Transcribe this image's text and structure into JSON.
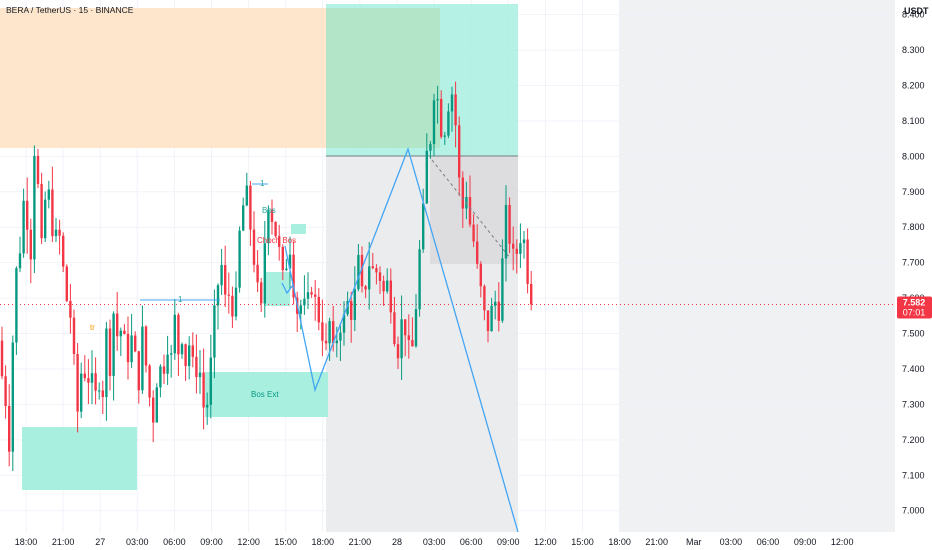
{
  "header": {
    "title": "BERA / TetherUS · 15 · BINANCE"
  },
  "price_axis": {
    "currency": "USDT",
    "last_price": "7.582",
    "countdown": "07:01",
    "last_value": 7.582
  },
  "colors": {
    "up": "#089981",
    "down": "#f23645",
    "supply_zone": "#fde6cc",
    "teal_zone": "#a8efe0",
    "green_zone": "#b3e6c9",
    "gray_zone": "#e9eaec",
    "future_area": "#f0f1f3",
    "pattern_line": "#42a5f5",
    "label_red": "#f23645",
    "label_orange": "#ff9800",
    "label_teal": "#26a69a"
  },
  "annotations": {
    "bos_ext": "Bos Ext",
    "choch_bos": "Choch Bos",
    "label_1a": "1",
    "label_1b": "1",
    "label_tr": "tr",
    "label_bos": "Bos"
  },
  "chart_data": {
    "type": "candlestick",
    "title": "BERA / TetherUS · 15 · BINANCE",
    "ylabel": "USDT",
    "ylim": [
      6.94,
      8.43
    ],
    "y_ticks": [
      7.0,
      7.1,
      7.2,
      7.3,
      7.4,
      7.5,
      7.6,
      7.7,
      7.8,
      7.9,
      8.0,
      8.1,
      8.2,
      8.3,
      8.4
    ],
    "x_ticks": [
      "18:00",
      "21:00",
      "27",
      "03:00",
      "06:00",
      "09:00",
      "12:00",
      "15:00",
      "18:00",
      "21:00",
      "28",
      "03:00",
      "06:00",
      "09:00",
      "12:00",
      "15:00",
      "18:00",
      "21:00",
      "Mar",
      "03:00",
      "06:00",
      "09:00",
      "12:00"
    ],
    "grid": true,
    "anchors": [
      [
        0,
        7.48
      ],
      [
        4,
        7.4
      ],
      [
        8,
        7.35
      ],
      [
        12,
        7.22
      ],
      [
        14,
        7.15
      ],
      [
        18,
        7.7
      ],
      [
        22,
        7.65
      ],
      [
        26,
        7.88
      ],
      [
        30,
        7.85
      ],
      [
        34,
        7.7
      ],
      [
        38,
        8.02
      ],
      [
        42,
        7.9
      ],
      [
        46,
        7.7
      ],
      [
        50,
        7.95
      ],
      [
        54,
        7.85
      ],
      [
        58,
        7.75
      ],
      [
        62,
        7.8
      ],
      [
        66,
        7.7
      ],
      [
        70,
        7.6
      ],
      [
        74,
        7.55
      ],
      [
        78,
        7.4
      ],
      [
        82,
        7.25
      ],
      [
        86,
        7.45
      ],
      [
        90,
        7.35
      ],
      [
        94,
        7.4
      ],
      [
        98,
        7.3
      ],
      [
        102,
        7.38
      ],
      [
        106,
        7.32
      ],
      [
        110,
        7.5
      ],
      [
        114,
        7.4
      ],
      [
        118,
        7.6
      ],
      [
        122,
        7.45
      ],
      [
        126,
        7.55
      ],
      [
        130,
        7.4
      ],
      [
        134,
        7.5
      ],
      [
        138,
        7.45
      ],
      [
        142,
        7.35
      ],
      [
        146,
        7.5
      ],
      [
        150,
        7.4
      ],
      [
        154,
        7.3
      ],
      [
        158,
        7.25
      ],
      [
        162,
        7.45
      ],
      [
        166,
        7.35
      ],
      [
        170,
        7.5
      ],
      [
        174,
        7.4
      ],
      [
        178,
        7.55
      ],
      [
        182,
        7.45
      ],
      [
        186,
        7.5
      ],
      [
        190,
        7.4
      ],
      [
        194,
        7.5
      ],
      [
        198,
        7.35
      ],
      [
        202,
        7.45
      ],
      [
        206,
        7.3
      ],
      [
        210,
        7.28
      ],
      [
        214,
        7.4
      ],
      [
        218,
        7.55
      ],
      [
        222,
        7.65
      ],
      [
        226,
        7.7
      ],
      [
        230,
        7.55
      ],
      [
        234,
        7.65
      ],
      [
        238,
        7.5
      ],
      [
        242,
        7.75
      ],
      [
        246,
        7.85
      ],
      [
        250,
        7.9
      ],
      [
        254,
        7.8
      ],
      [
        258,
        7.7
      ],
      [
        262,
        7.6
      ],
      [
        266,
        7.55
      ],
      [
        270,
        7.9
      ],
      [
        274,
        7.85
      ],
      [
        278,
        7.8
      ],
      [
        282,
        7.75
      ],
      [
        286,
        7.65
      ],
      [
        290,
        7.7
      ],
      [
        294,
        7.75
      ],
      [
        298,
        7.6
      ],
      [
        302,
        7.55
      ],
      [
        306,
        7.6
      ],
      [
        310,
        7.55
      ],
      [
        314,
        7.65
      ],
      [
        318,
        7.6
      ],
      [
        322,
        7.55
      ],
      [
        326,
        7.5
      ],
      [
        330,
        7.45
      ],
      [
        334,
        7.55
      ],
      [
        338,
        7.4
      ],
      [
        342,
        7.55
      ],
      [
        346,
        7.5
      ],
      [
        350,
        7.6
      ],
      [
        354,
        7.55
      ],
      [
        358,
        7.6
      ],
      [
        362,
        7.7
      ],
      [
        366,
        7.6
      ],
      [
        370,
        7.65
      ],
      [
        374,
        7.72
      ],
      [
        378,
        7.65
      ],
      [
        382,
        7.7
      ],
      [
        386,
        7.6
      ],
      [
        390,
        7.65
      ],
      [
        394,
        7.6
      ],
      [
        398,
        7.5
      ],
      [
        402,
        7.45
      ],
      [
        406,
        7.55
      ],
      [
        410,
        7.5
      ],
      [
        414,
        7.42
      ],
      [
        418,
        7.5
      ],
      [
        422,
        7.7
      ],
      [
        426,
        7.8
      ],
      [
        430,
        8.0
      ],
      [
        434,
        8.05
      ],
      [
        438,
        8.2
      ],
      [
        442,
        8.15
      ],
      [
        446,
        8.05
      ],
      [
        450,
        8.1
      ],
      [
        454,
        8.2
      ],
      [
        458,
        8.15
      ],
      [
        462,
        7.95
      ],
      [
        466,
        7.85
      ],
      [
        470,
        7.9
      ],
      [
        474,
        7.8
      ],
      [
        478,
        7.75
      ],
      [
        482,
        7.65
      ],
      [
        486,
        7.6
      ],
      [
        490,
        7.5
      ],
      [
        494,
        7.55
      ],
      [
        498,
        7.6
      ],
      [
        502,
        7.55
      ],
      [
        506,
        7.7
      ],
      [
        510,
        7.85
      ],
      [
        514,
        7.75
      ],
      [
        518,
        7.7
      ],
      [
        522,
        7.75
      ],
      [
        526,
        7.8
      ],
      [
        530,
        7.7
      ],
      [
        534,
        7.582
      ]
    ]
  }
}
